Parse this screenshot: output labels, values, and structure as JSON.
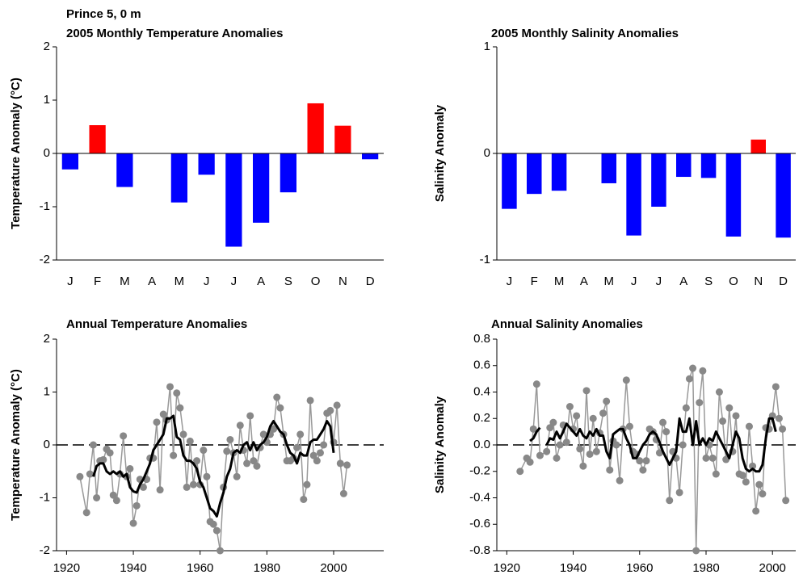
{
  "title": "Prince 5, 0 m",
  "chart_data": [
    {
      "type": "bar",
      "title": "2005 Monthly Temperature Anomalies",
      "y_label": "Temperature Anomaly (°C)",
      "categories": [
        "J",
        "F",
        "M",
        "A",
        "M",
        "J",
        "J",
        "A",
        "S",
        "O",
        "N",
        "D"
      ],
      "values": [
        -0.3,
        0.53,
        -0.63,
        null,
        -0.92,
        -0.4,
        -1.75,
        -1.3,
        -0.73,
        0.94,
        0.52,
        -0.11
      ],
      "positive_color": "#ff0000",
      "negative_color": "#0000ff",
      "ylim": [
        -2,
        2
      ],
      "yticks": [
        -2,
        -1,
        0,
        1,
        2
      ]
    },
    {
      "type": "bar",
      "title": "2005 Monthly Salinity Anomalies",
      "y_label": "Salinity Anomaly",
      "categories": [
        "J",
        "F",
        "M",
        "A",
        "M",
        "J",
        "J",
        "A",
        "S",
        "O",
        "N",
        "D"
      ],
      "values": [
        -0.52,
        -0.38,
        -0.35,
        null,
        -0.28,
        -0.77,
        -0.5,
        -0.22,
        -0.23,
        -0.78,
        0.13,
        -0.79
      ],
      "positive_color": "#ff0000",
      "negative_color": "#0000ff",
      "ylim": [
        -1,
        1
      ],
      "yticks": [
        -1,
        0,
        1
      ]
    },
    {
      "type": "line",
      "title": "Annual Temperature Anomalies",
      "y_label": "Temperature Anomaly (°C)",
      "xlim": [
        1917,
        2015
      ],
      "xticks": [
        1920,
        1940,
        1960,
        1980,
        2000
      ],
      "ylim": [
        -2,
        2
      ],
      "yticks": [
        -2,
        -1,
        0,
        1,
        2
      ],
      "series": [
        {
          "color": "#888888",
          "markers": true,
          "x": [
            1924,
            1926,
            1927,
            1928,
            1929,
            1930,
            1931,
            1932,
            1933,
            1934,
            1935,
            1936,
            1937,
            1938,
            1939,
            1940,
            1941,
            1942,
            1943,
            1944,
            1945,
            1946,
            1947,
            1948,
            1949,
            1950,
            1951,
            1952,
            1953,
            1954,
            1955,
            1956,
            1957,
            1958,
            1959,
            1960,
            1961,
            1962,
            1963,
            1964,
            1965,
            1966,
            1967,
            1968,
            1969,
            1970,
            1971,
            1972,
            1973,
            1974,
            1975,
            1976,
            1977,
            1978,
            1979,
            1980,
            1981,
            1982,
            1983,
            1984,
            1985,
            1986,
            1987,
            1988,
            1989,
            1990,
            1991,
            1992,
            1993,
            1994,
            1995,
            1996,
            1997,
            1998,
            1999,
            2000,
            2001,
            2002,
            2003,
            2004
          ],
          "values": [
            -0.6,
            -1.28,
            -0.55,
            0.0,
            -1.0,
            -0.3,
            -0.28,
            -0.08,
            -0.15,
            -0.95,
            -1.05,
            -0.55,
            0.17,
            -0.6,
            -0.45,
            -1.48,
            -1.15,
            -0.65,
            -0.8,
            -0.65,
            -0.25,
            -0.25,
            0.43,
            -0.85,
            0.58,
            0.47,
            1.1,
            -0.2,
            0.98,
            0.7,
            0.2,
            -0.8,
            0.07,
            -0.75,
            -0.3,
            -0.75,
            -0.1,
            -0.6,
            -1.45,
            -1.5,
            -1.62,
            -2.0,
            -0.8,
            -0.12,
            0.1,
            -0.15,
            -0.6,
            0.37,
            -0.1,
            -0.35,
            0.55,
            -0.3,
            -0.4,
            -0.05,
            0.2,
            0.05,
            0.2,
            0.3,
            0.9,
            0.7,
            0.2,
            -0.3,
            -0.3,
            -0.25,
            -0.05,
            0.2,
            -1.03,
            -0.75,
            0.84,
            -0.2,
            -0.3,
            -0.15,
            0.0,
            0.6,
            0.65,
            0.05,
            0.75,
            -0.35,
            -0.92,
            -0.38
          ]
        },
        {
          "color": "#000000",
          "markers": false,
          "x": [
            1928,
            1929,
            1930,
            1931,
            1932,
            1933,
            1934,
            1935,
            1936,
            1937,
            1938,
            1939,
            1940,
            1941,
            1942,
            1943,
            1944,
            1945,
            1946,
            1947,
            1948,
            1949,
            1950,
            1951,
            1952,
            1953,
            1954,
            1955,
            1956,
            1957,
            1958,
            1959,
            1960,
            1961,
            1962,
            1963,
            1964,
            1965,
            1966,
            1967,
            1968,
            1969,
            1970,
            1971,
            1972,
            1973,
            1974,
            1975,
            1976,
            1977,
            1978,
            1979,
            1980,
            1981,
            1982,
            1983,
            1984,
            1985,
            1986,
            1987,
            1988,
            1989,
            1990,
            1991,
            1992,
            1993,
            1994,
            1995,
            1996,
            1997,
            1998,
            1999,
            2000
          ],
          "values": [
            -0.6,
            -0.4,
            -0.35,
            -0.35,
            -0.5,
            -0.55,
            -0.5,
            -0.55,
            -0.5,
            -0.6,
            -0.55,
            -0.8,
            -0.88,
            -0.9,
            -0.75,
            -0.65,
            -0.5,
            -0.35,
            -0.1,
            0.0,
            0.1,
            0.2,
            0.5,
            0.5,
            0.55,
            0.15,
            0.1,
            -0.2,
            -0.3,
            -0.3,
            -0.35,
            -0.45,
            -0.7,
            -0.8,
            -1.0,
            -1.2,
            -1.25,
            -1.35,
            -1.1,
            -0.9,
            -0.6,
            -0.45,
            -0.15,
            -0.1,
            -0.15,
            0.0,
            0.05,
            -0.1,
            0.05,
            -0.1,
            0.0,
            0.05,
            0.15,
            0.35,
            0.45,
            0.35,
            0.25,
            0.2,
            0.0,
            -0.15,
            -0.2,
            -0.35,
            -0.15,
            -0.2,
            -0.2,
            0.05,
            0.1,
            0.1,
            0.2,
            0.3,
            0.45,
            0.35,
            -0.15
          ]
        }
      ]
    },
    {
      "type": "line",
      "title": "Annual Salinity Anomalies",
      "y_label": "Salinity Anomaly",
      "xlim": [
        1917,
        2007
      ],
      "xticks": [
        1920,
        1940,
        1960,
        1980,
        2000
      ],
      "ylim": [
        -0.8,
        0.8
      ],
      "yticks": [
        -0.8,
        -0.6,
        -0.4,
        -0.2,
        {
          "value": 0,
          "label": "0.0"
        },
        0.2,
        0.4,
        0.6,
        0.8
      ],
      "series": [
        {
          "color": "#888888",
          "markers": true,
          "x": [
            1924,
            1926,
            1927,
            1928,
            1929,
            1930,
            1932,
            1933,
            1934,
            1935,
            1936,
            1937,
            1938,
            1939,
            1940,
            1941,
            1942,
            1943,
            1944,
            1945,
            1946,
            1947,
            1948,
            1949,
            1950,
            1951,
            1952,
            1953,
            1954,
            1955,
            1956,
            1957,
            1958,
            1959,
            1960,
            1961,
            1962,
            1963,
            1964,
            1965,
            1966,
            1967,
            1968,
            1969,
            1970,
            1971,
            1972,
            1973,
            1974,
            1975,
            1976,
            1977,
            1978,
            1979,
            1980,
            1981,
            1982,
            1983,
            1984,
            1985,
            1986,
            1987,
            1988,
            1989,
            1990,
            1991,
            1992,
            1993,
            1994,
            1995,
            1996,
            1997,
            1998,
            1999,
            2000,
            2001,
            2002,
            2003,
            2004
          ],
          "values": [
            -0.2,
            -0.1,
            -0.13,
            0.12,
            0.46,
            -0.08,
            -0.05,
            0.13,
            0.17,
            -0.1,
            0.0,
            0.15,
            0.02,
            0.29,
            0.12,
            0.22,
            -0.03,
            -0.16,
            0.41,
            -0.07,
            0.2,
            -0.05,
            0.09,
            0.24,
            0.33,
            -0.19,
            0.03,
            0.0,
            -0.27,
            0.12,
            0.49,
            0.14,
            -0.05,
            -0.07,
            -0.12,
            -0.19,
            -0.12,
            0.12,
            0.1,
            0.04,
            -0.06,
            0.17,
            0.1,
            -0.42,
            -0.05,
            -0.1,
            -0.36,
            0.0,
            0.28,
            0.5,
            0.58,
            -0.8,
            0.32,
            0.56,
            -0.1,
            0.0,
            -0.1,
            -0.22,
            0.4,
            0.18,
            -0.11,
            0.28,
            -0.05,
            0.22,
            -0.22,
            -0.23,
            -0.28,
            0.14,
            -0.16,
            -0.5,
            -0.3,
            -0.37,
            0.13,
            0.12,
            0.22,
            0.44,
            0.2,
            0.12,
            -0.42
          ]
        },
        {
          "color": "#000000",
          "markers": false,
          "x": [
            1927,
            1928,
            1929,
            1930,
            1931,
            1932,
            1933,
            1934,
            1935,
            1936,
            1937,
            1938,
            1939,
            1940,
            1941,
            1942,
            1943,
            1944,
            1945,
            1946,
            1947,
            1948,
            1949,
            1950,
            1951,
            1952,
            1953,
            1954,
            1955,
            1956,
            1957,
            1958,
            1959,
            1960,
            1961,
            1962,
            1963,
            1964,
            1965,
            1966,
            1967,
            1968,
            1969,
            1970,
            1971,
            1972,
            1973,
            1974,
            1975,
            1976,
            1977,
            1978,
            1979,
            1980,
            1981,
            1982,
            1983,
            1984,
            1985,
            1986,
            1987,
            1988,
            1989,
            1990,
            1991,
            1992,
            1993,
            1994,
            1995,
            1996,
            1997,
            1998,
            1999,
            2000,
            2001
          ],
          "values": [
            0.03,
            0.05,
            0.1,
            0.13,
            null,
            0.0,
            0.05,
            0.04,
            0.1,
            0.05,
            0.1,
            0.16,
            0.13,
            0.1,
            0.07,
            0.12,
            0.07,
            0.05,
            0.1,
            0.07,
            0.12,
            0.07,
            0.07,
            -0.05,
            -0.1,
            0.08,
            0.1,
            0.12,
            0.12,
            0.05,
            0.0,
            -0.1,
            -0.1,
            -0.05,
            0.0,
            0.03,
            0.08,
            0.1,
            0.08,
            0.02,
            -0.05,
            -0.1,
            -0.15,
            -0.1,
            -0.05,
            0.2,
            0.1,
            0.1,
            0.2,
            0.0,
            0.18,
            0.0,
            0.05,
            0.0,
            0.05,
            0.03,
            0.1,
            0.05,
            0.0,
            -0.05,
            -0.1,
            0.0,
            0.1,
            0.05,
            -0.1,
            -0.18,
            -0.2,
            -0.18,
            -0.2,
            -0.2,
            -0.15,
            0.05,
            0.2,
            0.2,
            0.1
          ]
        }
      ]
    }
  ]
}
